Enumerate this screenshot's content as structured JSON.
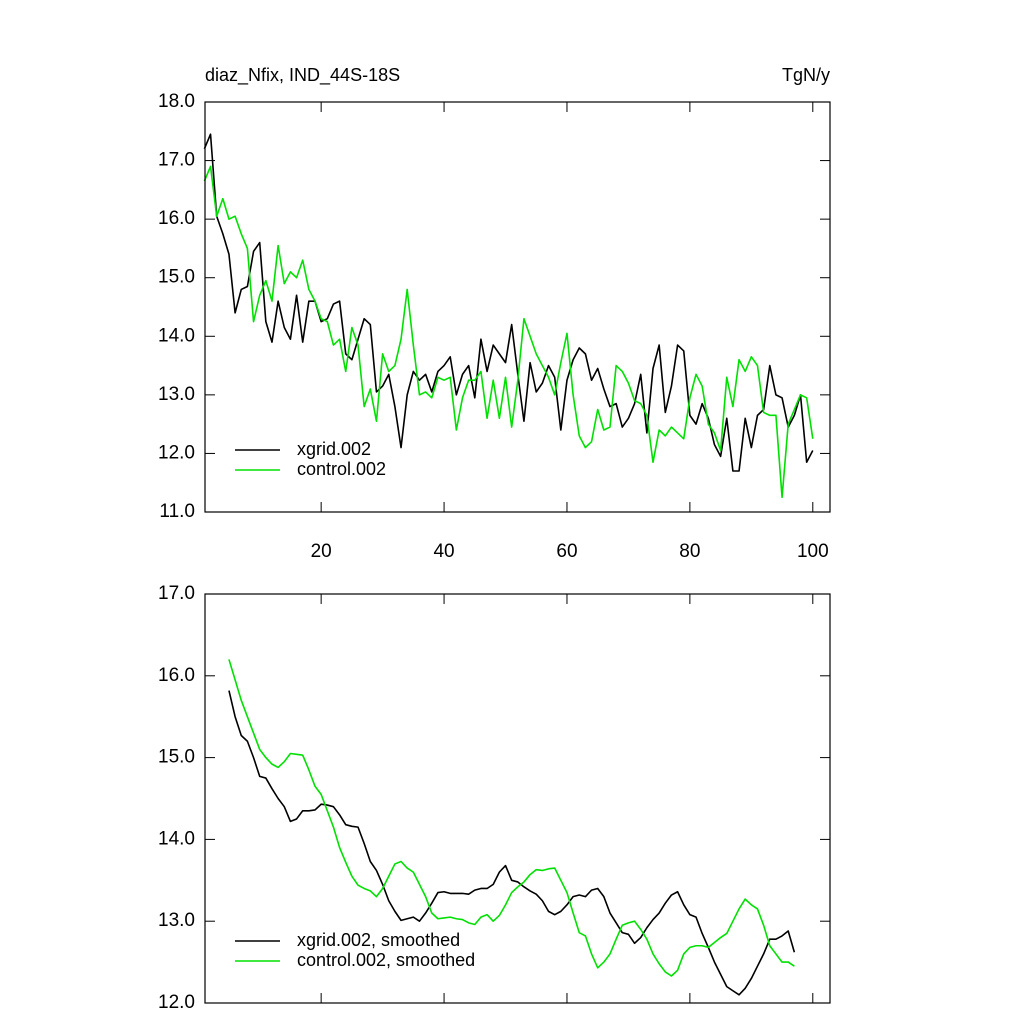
{
  "chart_data": [
    {
      "type": "line",
      "title": "diaz_Nfix, IND_44S-18S",
      "units": "TgN/y",
      "x": [
        1,
        2,
        3,
        4,
        5,
        6,
        7,
        8,
        9,
        10,
        11,
        12,
        13,
        14,
        15,
        16,
        17,
        18,
        19,
        20,
        21,
        22,
        23,
        24,
        25,
        26,
        27,
        28,
        29,
        30,
        31,
        32,
        33,
        34,
        35,
        36,
        37,
        38,
        39,
        40,
        41,
        42,
        43,
        44,
        45,
        46,
        47,
        48,
        49,
        50,
        51,
        52,
        53,
        54,
        55,
        56,
        57,
        58,
        59,
        60,
        61,
        62,
        63,
        64,
        65,
        66,
        67,
        68,
        69,
        70,
        71,
        72,
        73,
        74,
        75,
        76,
        77,
        78,
        79,
        80,
        81,
        82,
        83,
        84,
        85,
        86,
        87,
        88,
        89,
        90,
        91,
        92,
        93,
        94,
        95,
        96,
        97,
        98,
        99,
        100
      ],
      "series": [
        {
          "name": "xgrid.002",
          "color": "#000000",
          "values": [
            17.2,
            17.45,
            16.05,
            15.75,
            15.4,
            14.4,
            14.8,
            14.85,
            15.45,
            15.6,
            14.25,
            13.9,
            14.6,
            14.15,
            13.95,
            14.7,
            13.9,
            14.6,
            14.6,
            14.25,
            14.3,
            14.55,
            14.6,
            13.7,
            13.6,
            13.95,
            14.3,
            14.2,
            13.05,
            13.15,
            13.35,
            12.8,
            12.1,
            13.0,
            13.4,
            13.25,
            13.35,
            13.05,
            13.4,
            13.5,
            13.65,
            13.0,
            13.35,
            13.5,
            12.95,
            13.95,
            13.4,
            13.85,
            13.7,
            13.55,
            14.2,
            13.35,
            12.55,
            13.55,
            13.05,
            13.2,
            13.5,
            13.3,
            12.4,
            13.25,
            13.6,
            13.8,
            13.7,
            13.25,
            13.45,
            13.1,
            12.8,
            12.85,
            12.45,
            12.6,
            12.85,
            13.35,
            12.35,
            13.45,
            13.85,
            12.7,
            13.15,
            13.85,
            13.75,
            12.65,
            12.5,
            12.85,
            12.6,
            12.15,
            11.95,
            12.6,
            11.7,
            11.7,
            12.6,
            12.1,
            12.65,
            12.75,
            13.5,
            13.0,
            12.95,
            12.45,
            12.65,
            13.0,
            11.85,
            12.05
          ]
        },
        {
          "name": "control.002",
          "color": "#00e000",
          "values": [
            16.65,
            16.9,
            16.05,
            16.35,
            16.0,
            16.05,
            15.75,
            15.5,
            14.25,
            14.7,
            14.95,
            14.6,
            15.55,
            14.9,
            15.1,
            15.0,
            15.3,
            14.8,
            14.6,
            14.3,
            14.25,
            13.85,
            13.95,
            13.4,
            14.15,
            13.85,
            12.8,
            13.1,
            12.55,
            13.7,
            13.4,
            13.5,
            13.95,
            14.8,
            13.85,
            13.0,
            13.05,
            12.95,
            13.3,
            13.25,
            13.3,
            12.4,
            12.95,
            13.25,
            13.25,
            13.4,
            12.6,
            13.25,
            12.6,
            13.3,
            12.45,
            13.25,
            14.3,
            14.0,
            13.7,
            13.5,
            13.3,
            13.0,
            13.55,
            14.05,
            13.0,
            12.3,
            12.1,
            12.2,
            12.75,
            12.4,
            12.45,
            13.5,
            13.4,
            13.2,
            12.9,
            12.85,
            12.65,
            11.85,
            12.4,
            12.3,
            12.45,
            12.35,
            12.25,
            12.95,
            13.35,
            13.15,
            12.5,
            12.35,
            12.05,
            13.3,
            12.8,
            13.6,
            13.4,
            13.65,
            13.5,
            12.7,
            12.65,
            12.65,
            11.25,
            12.5,
            12.75,
            13.0,
            12.95,
            12.25
          ]
        }
      ],
      "xlim": [
        1.1,
        102.8
      ],
      "xticks": [
        20,
        40,
        60,
        80,
        100
      ],
      "ylim": [
        11,
        18
      ],
      "yticks": [
        {
          "value": 11,
          "label": "11.0"
        },
        {
          "value": 12,
          "label": "12.0"
        },
        {
          "value": 13,
          "label": "13.0"
        },
        {
          "value": 14,
          "label": "14.0"
        },
        {
          "value": 15,
          "label": "15.0"
        },
        {
          "value": 16,
          "label": "16.0"
        },
        {
          "value": 17,
          "label": "17.0"
        },
        {
          "value": 18,
          "label": "18.0"
        }
      ],
      "legend": "lower-left"
    },
    {
      "type": "line",
      "x": [
        5,
        6,
        7,
        8,
        9,
        10,
        11,
        12,
        13,
        14,
        15,
        16,
        17,
        18,
        19,
        20,
        21,
        22,
        23,
        24,
        25,
        26,
        27,
        28,
        29,
        30,
        31,
        32,
        33,
        34,
        35,
        36,
        37,
        38,
        39,
        40,
        41,
        42,
        43,
        44,
        45,
        46,
        47,
        48,
        49,
        50,
        51,
        52,
        53,
        54,
        55,
        56,
        57,
        58,
        59,
        60,
        61,
        62,
        63,
        64,
        65,
        66,
        67,
        68,
        69,
        70,
        71,
        72,
        73,
        74,
        75,
        76,
        77,
        78,
        79,
        80,
        81,
        82,
        83,
        84,
        85,
        86,
        87,
        88,
        89,
        90,
        91,
        92,
        93,
        94,
        95,
        96,
        97
      ],
      "series": [
        {
          "name": "xgrid.002, smoothed",
          "color": "#000000",
          "values": [
            15.82,
            15.5,
            15.27,
            15.2,
            15.0,
            14.77,
            14.75,
            14.62,
            14.5,
            14.4,
            14.22,
            14.25,
            14.35,
            14.35,
            14.36,
            14.43,
            14.42,
            14.4,
            14.3,
            14.18,
            14.16,
            14.15,
            13.95,
            13.73,
            13.62,
            13.45,
            13.25,
            13.12,
            13.01,
            13.03,
            13.05,
            13.0,
            13.1,
            13.22,
            13.35,
            13.36,
            13.34,
            13.34,
            13.34,
            13.33,
            13.38,
            13.4,
            13.4,
            13.45,
            13.6,
            13.68,
            13.5,
            13.48,
            13.42,
            13.37,
            13.33,
            13.25,
            13.12,
            13.08,
            13.12,
            13.2,
            13.3,
            13.32,
            13.3,
            13.38,
            13.4,
            13.3,
            13.1,
            12.98,
            12.86,
            12.84,
            12.73,
            12.8,
            12.92,
            13.02,
            13.1,
            13.22,
            13.32,
            13.36,
            13.2,
            13.08,
            13.05,
            12.85,
            12.68,
            12.5,
            12.35,
            12.2,
            12.15,
            12.1,
            12.18,
            12.3,
            12.45,
            12.6,
            12.78,
            12.78,
            12.82,
            12.88,
            12.62
          ]
        },
        {
          "name": "control.002, smoothed",
          "color": "#00e000",
          "values": [
            16.2,
            15.95,
            15.7,
            15.5,
            15.3,
            15.1,
            15.0,
            14.92,
            14.88,
            14.95,
            15.05,
            15.04,
            15.03,
            14.85,
            14.65,
            14.55,
            14.35,
            14.15,
            13.9,
            13.72,
            13.55,
            13.44,
            13.4,
            13.37,
            13.3,
            13.4,
            13.55,
            13.7,
            13.73,
            13.65,
            13.6,
            13.45,
            13.3,
            13.1,
            13.03,
            13.04,
            13.05,
            13.03,
            13.02,
            12.98,
            12.96,
            13.05,
            13.08,
            13.0,
            13.07,
            13.2,
            13.35,
            13.42,
            13.48,
            13.57,
            13.63,
            13.62,
            13.64,
            13.65,
            13.5,
            13.35,
            13.1,
            12.86,
            12.82,
            12.6,
            12.43,
            12.5,
            12.6,
            12.78,
            12.95,
            12.98,
            13.0,
            12.9,
            12.78,
            12.6,
            12.48,
            12.38,
            12.33,
            12.4,
            12.6,
            12.68,
            12.7,
            12.7,
            12.68,
            12.74,
            12.8,
            12.85,
            13.0,
            13.15,
            13.27,
            13.2,
            13.15,
            12.95,
            12.7,
            12.6,
            12.5,
            12.5,
            12.45
          ]
        }
      ],
      "xlim": [
        1.1,
        102.8
      ],
      "xticks": [
        20,
        40,
        60,
        80,
        100
      ],
      "ylim": [
        12,
        17
      ],
      "yticks": [
        {
          "value": 12,
          "label": "12.0"
        },
        {
          "value": 13,
          "label": "13.0"
        },
        {
          "value": 14,
          "label": "14.0"
        },
        {
          "value": 15,
          "label": "15.0"
        },
        {
          "value": 16,
          "label": "16.0"
        },
        {
          "value": 17,
          "label": "17.0"
        }
      ],
      "legend": "lower-left"
    }
  ]
}
